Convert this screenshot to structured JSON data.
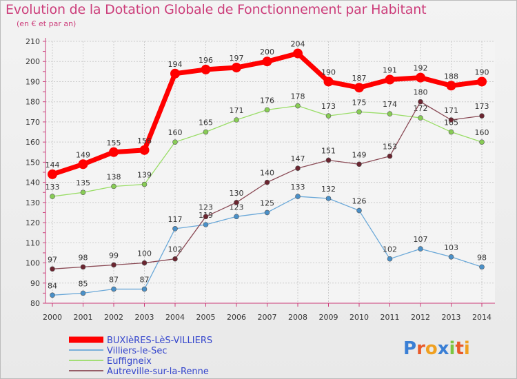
{
  "title": "Evolution de la Dotation Globale de Fonctionnement par Habitant",
  "subtitle": "(en € et par an)",
  "logo": {
    "text": "Proxiti",
    "letters": [
      {
        "ch": "P",
        "color": "#3a7fd5"
      },
      {
        "ch": "r",
        "color": "#e85a2a"
      },
      {
        "ch": "o",
        "color": "#f0a020"
      },
      {
        "ch": "x",
        "color": "#3a7fd5"
      },
      {
        "ch": "i",
        "color": "#7cc540"
      },
      {
        "ch": "t",
        "color": "#e85a2a"
      },
      {
        "ch": "i",
        "color": "#f0a020"
      }
    ]
  },
  "chart_data": {
    "type": "line",
    "title": "Evolution de la Dotation Globale de Fonctionnement par Habitant",
    "subtitle": "(en € et par an)",
    "x": [
      2000,
      2001,
      2002,
      2003,
      2004,
      2005,
      2006,
      2007,
      2008,
      2009,
      2010,
      2011,
      2012,
      2013,
      2014
    ],
    "x_tick_labels": [
      "2000",
      "2001",
      "2002",
      "2003",
      "2004",
      "2005",
      "2006",
      "2007",
      "2008",
      "2009",
      "2010",
      "2011",
      "2012",
      "2013",
      "2014"
    ],
    "ylim": [
      80,
      210
    ],
    "y_ticks": [
      80,
      90,
      100,
      110,
      120,
      130,
      140,
      150,
      160,
      170,
      180,
      190,
      200,
      210
    ],
    "grid": true,
    "legend_position": "bottom-left",
    "series": [
      {
        "name": "BUXIèRES-LèS-VILLIERS",
        "color": "#ff0000",
        "marker_color": "#ff0000",
        "bold": true,
        "values": [
          144,
          149,
          155,
          156,
          194,
          196,
          197,
          200,
          204,
          190,
          187,
          191,
          192,
          188,
          190
        ]
      },
      {
        "name": "Villiers-le-Sec",
        "color": "#6aa8d8",
        "marker_color": "#4a90c8",
        "bold": false,
        "values": [
          84,
          85,
          87,
          87,
          117,
          119,
          123,
          125,
          133,
          132,
          126,
          102,
          107,
          103,
          98
        ]
      },
      {
        "name": "Euffigneix",
        "color": "#99dd66",
        "marker_color": "#88cc55",
        "bold": false,
        "values": [
          133,
          135,
          138,
          139,
          160,
          165,
          171,
          176,
          178,
          173,
          175,
          174,
          172,
          165,
          160
        ]
      },
      {
        "name": "Autreville-sur-la-Renne",
        "color": "#8a4a55",
        "marker_color": "#6b2530",
        "bold": false,
        "values": [
          97,
          98,
          99,
          100,
          102,
          123,
          130,
          140,
          147,
          151,
          149,
          153,
          180,
          171,
          173
        ]
      }
    ]
  },
  "colors": {
    "title": "#cc3d7a",
    "legend_text": "#3344cc",
    "axis_text": "#333333",
    "grid": "#cccccc",
    "tick": "#cc3d7a"
  }
}
